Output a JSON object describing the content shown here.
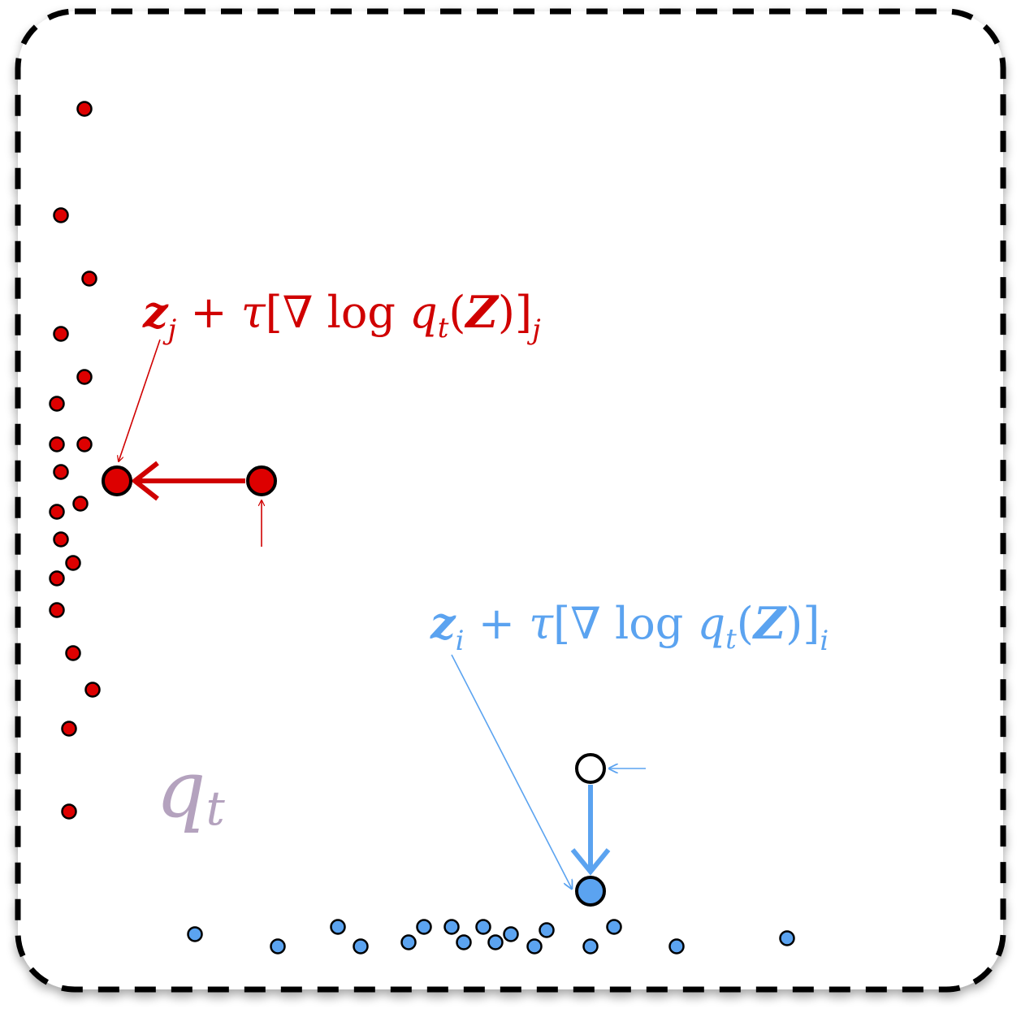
{
  "region_label": {
    "main": "q",
    "sub": "t",
    "color": "#b4a2be"
  },
  "red_label": {
    "var": "z",
    "var_sub": "j",
    "plus": " + ",
    "tau": "τ",
    "open_bracket": "[",
    "nabla": "∇",
    "log": " log ",
    "q": "q",
    "q_sub": "t",
    "open_paren": "(",
    "Z": "Z",
    "close_paren": ")",
    "close_bracket": "]",
    "outer_sub": "j",
    "color": "#d00000"
  },
  "blue_label": {
    "var": "z",
    "var_sub": "i",
    "plus": " + ",
    "tau": "τ",
    "open_bracket": "[",
    "nabla": "∇",
    "log": " log ",
    "q": "q",
    "q_sub": "t",
    "open_paren": "(",
    "Z": "Z",
    "close_paren": ")",
    "close_bracket": "]",
    "outer_sub": "i",
    "color": "#5ba3f0"
  },
  "colors": {
    "red_particle": "#dd0000",
    "blue_particle": "#5ba3f0",
    "border": "#000000",
    "background": "#ffffff"
  }
}
